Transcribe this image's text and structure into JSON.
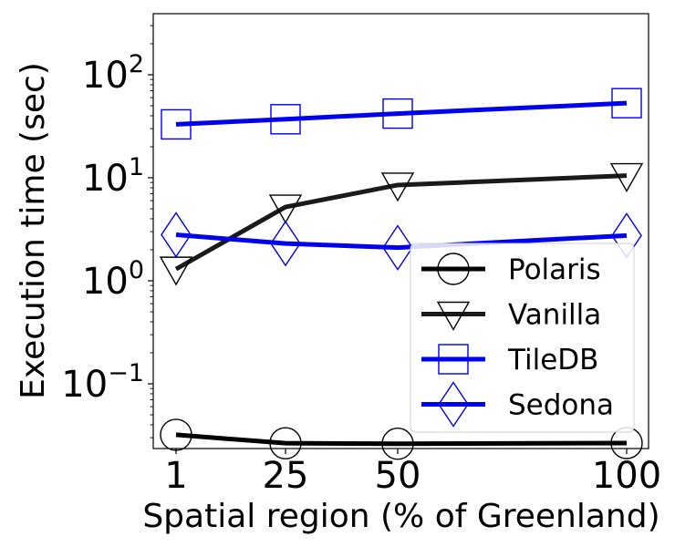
{
  "chart_data": {
    "type": "line",
    "x": [
      1,
      25,
      50,
      100
    ],
    "xticks": [
      "1",
      "25",
      "50",
      "100"
    ],
    "xlabel": "Spatial region (% of Greenland)",
    "ylabel": "Execution time (sec)",
    "yscale": "log",
    "ylim": [
      0.025,
      380
    ],
    "yticks": [
      {
        "base": "10",
        "exp": "−1"
      },
      {
        "base": "10",
        "exp": "0"
      },
      {
        "base": "10",
        "exp": "1"
      },
      {
        "base": "10",
        "exp": "2"
      }
    ],
    "grid": false,
    "legend_position": "lower-right",
    "series": [
      {
        "name": "Polaris",
        "values": [
          0.032,
          0.0265,
          0.0262,
          0.0266
        ],
        "marker": "circle",
        "line_color": "#000000",
        "marker_color": "#000000"
      },
      {
        "name": "Vanilla",
        "values": [
          1.3,
          5.2,
          8.5,
          10.5
        ],
        "marker": "triangle-down",
        "line_color": "#1a1a1a",
        "marker_color": "#000000"
      },
      {
        "name": "TileDB",
        "values": [
          33,
          37,
          42,
          53
        ],
        "marker": "square",
        "line_color": "#0000ee",
        "marker_color": "#0000ee"
      },
      {
        "name": "Sedona",
        "values": [
          2.8,
          2.3,
          2.1,
          2.75
        ],
        "marker": "diamond",
        "line_color": "#0000ee",
        "marker_color": "#0000ee"
      }
    ]
  }
}
